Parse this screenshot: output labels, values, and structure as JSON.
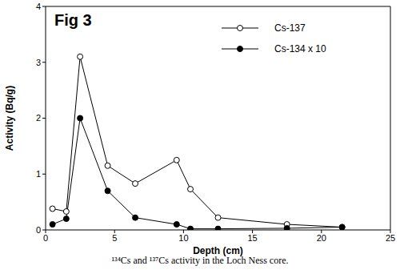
{
  "chart_data": {
    "type": "line",
    "title": "Fig 3",
    "caption": "¹³⁴Cs and ¹³⁷Cs activity in the Loch Ness core.",
    "x_label": "Depth (cm)",
    "y_label": "Activity (Bq/g)",
    "x": [
      0.5,
      1.5,
      2.5,
      4.5,
      6.5,
      9.5,
      10.5,
      12.5,
      17.5,
      21.5
    ],
    "series": [
      {
        "name": "Cs-137",
        "color": "#000000",
        "marker": "open_circle",
        "line_style": "solid",
        "values": [
          0.38,
          0.33,
          3.1,
          1.15,
          0.83,
          1.25,
          0.73,
          0.22,
          0.1,
          0.05
        ]
      },
      {
        "name": "Cs-134 x 10",
        "color": "#000000",
        "marker": "filled_circle",
        "line_style": "solid",
        "values": [
          0.1,
          0.2,
          2.0,
          0.7,
          0.22,
          0.1,
          0.02,
          0.02,
          0.03,
          0.05
        ]
      }
    ],
    "xlim": [
      0,
      25
    ],
    "ylim": [
      0,
      4
    ],
    "xticks": [
      0,
      5,
      10,
      15,
      20,
      25
    ],
    "yticks": [
      0,
      1,
      2,
      3,
      4
    ],
    "grid": false,
    "legend": "upper right"
  }
}
